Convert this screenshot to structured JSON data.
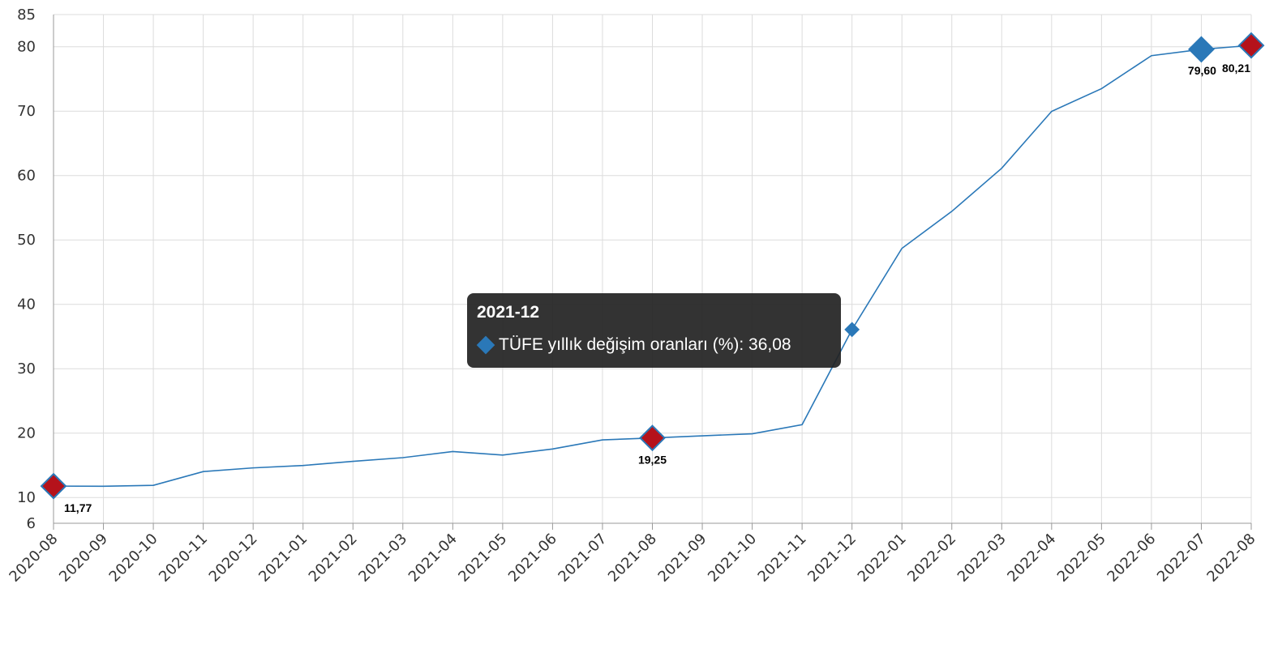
{
  "chart_data": {
    "type": "line",
    "title": "",
    "xlabel": "",
    "ylabel": "",
    "ylim": [
      6,
      85
    ],
    "y_ticks": [
      6,
      10,
      20,
      30,
      40,
      50,
      60,
      70,
      80,
      85
    ],
    "grid": true,
    "categories": [
      "2020-08",
      "2020-09",
      "2020-10",
      "2020-11",
      "2020-12",
      "2021-01",
      "2021-02",
      "2021-03",
      "2021-04",
      "2021-05",
      "2021-06",
      "2021-07",
      "2021-08",
      "2021-09",
      "2021-10",
      "2021-11",
      "2021-12",
      "2022-01",
      "2022-02",
      "2022-03",
      "2022-04",
      "2022-05",
      "2022-06",
      "2022-07",
      "2022-08"
    ],
    "series": [
      {
        "name": "TÜFE yıllık değişim oranları (%)",
        "color": "#2a78b8",
        "values": [
          11.77,
          11.75,
          11.89,
          14.03,
          14.6,
          14.97,
          15.61,
          16.19,
          17.14,
          16.59,
          17.53,
          18.95,
          19.25,
          19.58,
          19.89,
          21.31,
          36.08,
          48.69,
          54.44,
          61.14,
          69.97,
          73.5,
          78.62,
          79.6,
          80.21
        ]
      }
    ],
    "data_labels": [
      {
        "category": "2020-08",
        "text": "11,77"
      },
      {
        "category": "2021-08",
        "text": "19,25"
      },
      {
        "category": "2022-07",
        "text": "79,60"
      },
      {
        "category": "2022-08",
        "text": "80,21"
      }
    ],
    "markers": [
      {
        "category": "2020-08",
        "style": "min",
        "color": "#b5121b"
      },
      {
        "category": "2021-08",
        "style": "min",
        "color": "#b5121b"
      },
      {
        "category": "2022-07",
        "style": "highlight",
        "color": "#2a78b8"
      },
      {
        "category": "2022-08",
        "style": "max",
        "color": "#b5121b"
      }
    ],
    "hover_point": "2021-12"
  },
  "tooltip": {
    "title": "2021-12",
    "series_label": "TÜFE yıllık değişim oranları (%)",
    "value_text": "36,08",
    "row_text": "TÜFE yıllık değişim oranları (%): 36,08",
    "marker_color": "#2a78b8"
  }
}
